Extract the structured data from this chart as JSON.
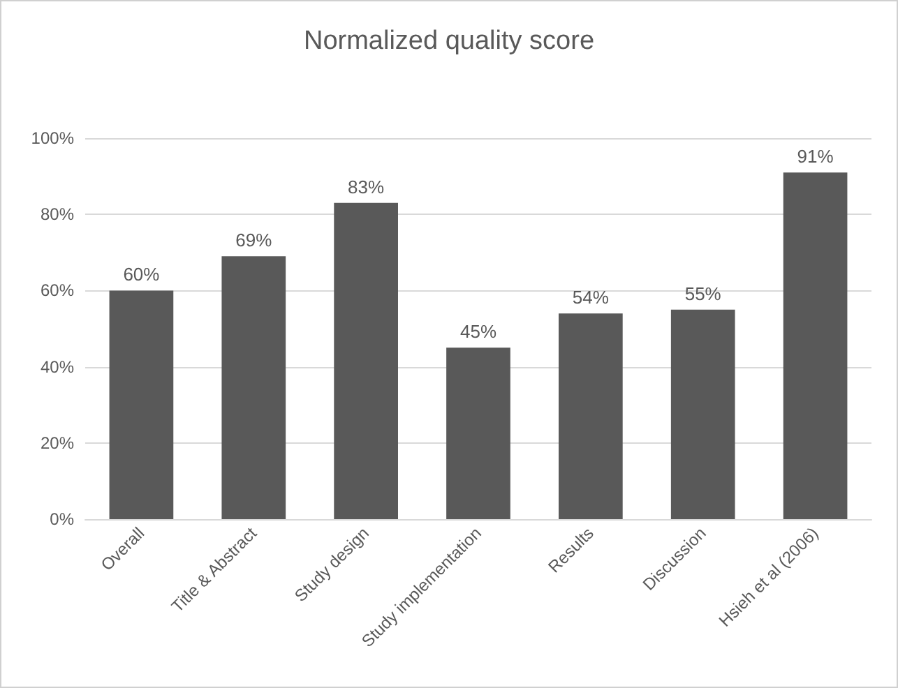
{
  "chart_data": {
    "type": "bar",
    "title": "Normalized quality score",
    "categories": [
      "Overall",
      "Title & Abstract",
      "Study design",
      "Study implementation",
      "Results",
      "Discussion",
      "Hsieh et al (2006)"
    ],
    "values": [
      60,
      69,
      83,
      45,
      54,
      55,
      91
    ],
    "value_labels": [
      "60%",
      "69%",
      "83%",
      "45%",
      "54%",
      "55%",
      "91%"
    ],
    "color": "#595959",
    "ylim": [
      0,
      100
    ],
    "yticks": [
      {
        "value": 0,
        "label": "0%"
      },
      {
        "value": 20,
        "label": "20%"
      },
      {
        "value": 40,
        "label": "40%"
      },
      {
        "value": 60,
        "label": "60%"
      },
      {
        "value": 80,
        "label": "80%"
      },
      {
        "value": 100,
        "label": "100%"
      }
    ],
    "grid": "y"
  }
}
